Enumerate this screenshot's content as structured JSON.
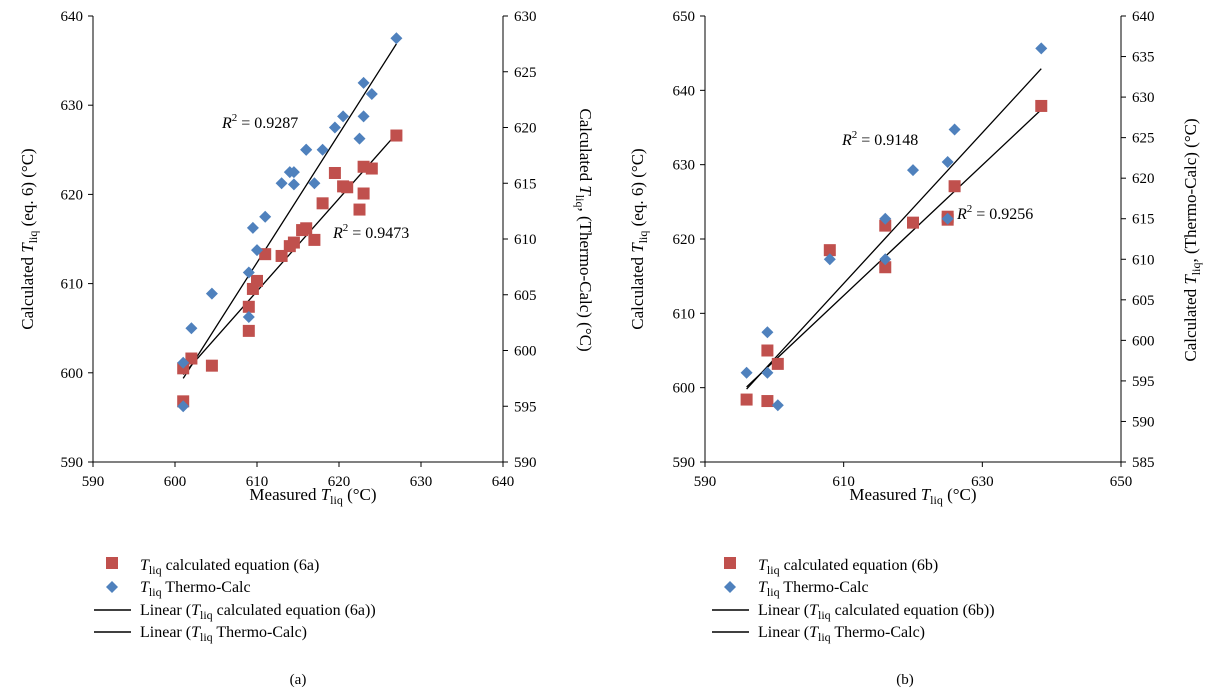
{
  "chart_data": [
    {
      "type": "scatter",
      "panel_label": "(a)",
      "xlabel": "Measured T_liq (°C)",
      "ylabel": "Calculated T_liq (eq. 6) (°C)",
      "y2label": "Calculated T_liq, (Thermo-Calc) (°C)",
      "xlim": [
        590,
        640
      ],
      "ylim": [
        590,
        640
      ],
      "y2lim": [
        590,
        630
      ],
      "xticks": [
        590,
        600,
        610,
        620,
        630,
        640
      ],
      "yticks": [
        590,
        600,
        610,
        620,
        630,
        640
      ],
      "y2ticks": [
        590,
        595,
        600,
        605,
        610,
        615,
        620,
        625,
        630
      ],
      "legend_entries": [
        "T_liq calculated equation (6a)",
        "T_liq Thermo-Calc",
        "Linear (T_liq calculated equation (6a))",
        "Linear (T_liq Thermo-Calc)"
      ],
      "annotations": [
        "R² = 0.9287",
        "R² = 0.9473"
      ],
      "series": [
        {
          "name": "T_liq calculated equation (6a)",
          "axis": "left",
          "color": "#c0504d",
          "marker": "square",
          "x": [
            601,
            601,
            602,
            604.5,
            609,
            609,
            609.5,
            610,
            611,
            613,
            614,
            614.5,
            615.5,
            616,
            617,
            618,
            619.5,
            620.5,
            621,
            622.5,
            623,
            623,
            624,
            627
          ],
          "y": [
            596.8,
            600.5,
            601.6,
            600.8,
            604.7,
            607.4,
            609.4,
            610.3,
            613.3,
            613.1,
            614.2,
            614.6,
            616.0,
            616.2,
            614.9,
            619.0,
            622.4,
            620.9,
            620.8,
            618.3,
            620.1,
            623.1,
            622.9,
            626.6
          ]
        },
        {
          "name": "T_liq Thermo-Calc",
          "axis": "right",
          "color": "#4f81bd",
          "marker": "diamond",
          "x": [
            601,
            601,
            602,
            604.5,
            609,
            609,
            609.5,
            610,
            611,
            613,
            614,
            614.5,
            614.5,
            616,
            616,
            617,
            618,
            619.5,
            620.5,
            622.5,
            623,
            623,
            624,
            627
          ],
          "y": [
            595.0,
            598.9,
            602.0,
            605.1,
            607.0,
            603.0,
            611.0,
            609.0,
            612.0,
            615.0,
            616.0,
            616.0,
            614.9,
            618.0,
            618.0,
            615.0,
            618.0,
            620.0,
            621.0,
            619.0,
            621.0,
            624.0,
            623.0,
            628.0
          ]
        },
        {
          "name": "Linear (T_liq calculated equation (6a))",
          "axis": "left",
          "type": "line",
          "x": [
            601,
            627
          ],
          "y": [
            599.8,
            626.8
          ]
        },
        {
          "name": "Linear (T_liq Thermo-Calc)",
          "axis": "right",
          "type": "line",
          "x": [
            601,
            627
          ],
          "y": [
            597.5,
            627.5
          ]
        }
      ]
    },
    {
      "type": "scatter",
      "panel_label": "(b)",
      "xlabel": "Measured T_liq (°C)",
      "ylabel": "Calculated T_liq (eq. 6) (°C)",
      "y2label": "Calculated T_liq, (Thermo-Calc) (°C)",
      "xlim": [
        590,
        650
      ],
      "ylim": [
        590,
        650
      ],
      "y2lim": [
        585,
        640
      ],
      "xticks": [
        590,
        610,
        630,
        650
      ],
      "yticks": [
        590,
        600,
        610,
        620,
        630,
        640,
        650
      ],
      "y2ticks": [
        585,
        590,
        595,
        600,
        605,
        610,
        615,
        620,
        625,
        630,
        635,
        640
      ],
      "legend_entries": [
        "T_liq calculated equation (6b)",
        "T_liq Thermo-Calc",
        "Linear (T_liq calculated equation (6b))",
        "Linear (T_liq Thermo-Calc)"
      ],
      "annotations": [
        "R² = 0.9148",
        "R² = 0.9256"
      ],
      "series": [
        {
          "name": "T_liq calculated equation (6b)",
          "axis": "left",
          "color": "#c0504d",
          "marker": "square",
          "x": [
            596,
            599,
            599,
            600.5,
            608,
            616,
            616,
            620,
            625,
            625,
            626,
            638.5
          ],
          "y": [
            598.4,
            598.2,
            605.0,
            603.2,
            618.5,
            621.8,
            616.2,
            622.2,
            623.0,
            622.6,
            627.1,
            637.9
          ]
        },
        {
          "name": "T_liq Thermo-Calc",
          "axis": "right",
          "color": "#4f81bd",
          "marker": "diamond",
          "x": [
            596,
            599,
            599,
            600.5,
            608,
            616,
            616,
            620,
            625,
            625,
            626,
            638.5
          ],
          "y": [
            596.0,
            601.0,
            596.0,
            592.0,
            610.0,
            615.0,
            610.0,
            621.0,
            622.0,
            615.0,
            626.0,
            636.0
          ]
        },
        {
          "name": "Linear (T_liq calculated equation (6b))",
          "axis": "left",
          "type": "line",
          "x": [
            596,
            638.5
          ],
          "y": [
            600.1,
            637.4
          ]
        },
        {
          "name": "Linear (T_liq Thermo-Calc)",
          "axis": "right",
          "type": "line",
          "x": [
            596,
            638.5
          ],
          "y": [
            594.0,
            633.5
          ]
        }
      ]
    }
  ]
}
